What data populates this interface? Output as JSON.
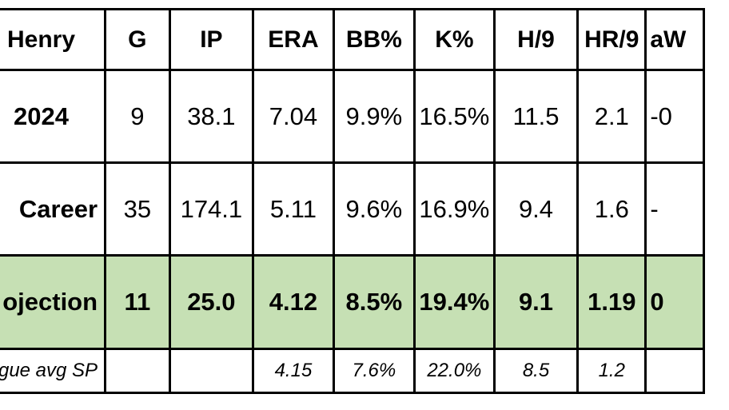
{
  "table": {
    "headers": [
      "Henry",
      "G",
      "IP",
      "ERA",
      "BB%",
      "K%",
      "H/9",
      "HR/9",
      "aW"
    ],
    "rows": [
      {
        "label": "2024",
        "cells": [
          "9",
          "38.1",
          "7.04",
          "9.9%",
          "16.5%",
          "11.5",
          "2.1",
          "-0"
        ]
      },
      {
        "label": "Career",
        "cells": [
          "35",
          "174.1",
          "5.11",
          "9.6%",
          "16.9%",
          "9.4",
          "1.6",
          "-"
        ]
      },
      {
        "label": "ojection",
        "cells": [
          "11",
          "25.0",
          "4.12",
          "8.5%",
          "19.4%",
          "9.1",
          "1.19",
          "0"
        ]
      },
      {
        "label": "gue avg SP",
        "cells": [
          "",
          "",
          "4.15",
          "7.6%",
          "22.0%",
          "8.5",
          "1.2",
          ""
        ]
      }
    ]
  },
  "colors": {
    "projection_row_fill": "#c6e0b4",
    "border": "#000000"
  }
}
